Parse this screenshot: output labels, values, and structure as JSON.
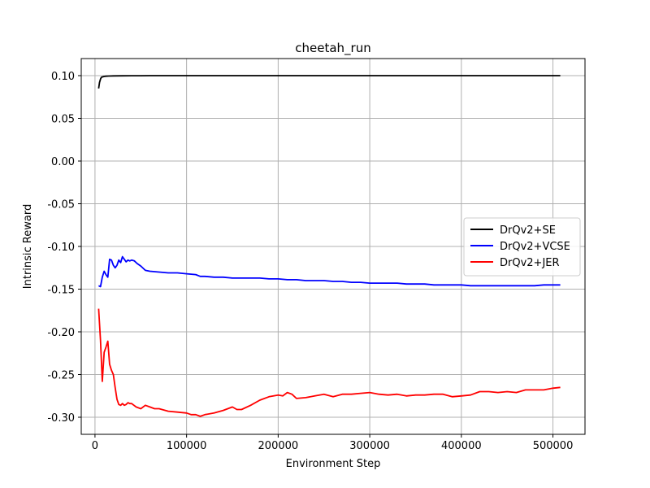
{
  "chart_data": {
    "type": "line",
    "title": "cheetah_run",
    "xlabel": "Environment Step",
    "ylabel": "Intrinsic  Reward",
    "xlim": [
      -15000,
      535000
    ],
    "ylim": [
      -0.32,
      0.12
    ],
    "x_ticks": [
      0,
      100000,
      200000,
      300000,
      400000,
      500000
    ],
    "y_ticks": [
      0.1,
      0.05,
      0.0,
      -0.05,
      -0.1,
      -0.15,
      -0.2,
      -0.25,
      -0.3
    ],
    "grid": true,
    "legend_position": "center-right",
    "series": [
      {
        "name": "DrQv2+SE",
        "color": "#000000",
        "x": [
          4000,
          5000,
          6000,
          7000,
          8000,
          10000,
          12000,
          15000,
          20000,
          30000,
          40000,
          50000,
          60000,
          100000,
          200000,
          300000,
          400000,
          508000
        ],
        "y": [
          0.085,
          0.092,
          0.096,
          0.098,
          0.0985,
          0.099,
          0.0993,
          0.0995,
          0.0997,
          0.0998,
          0.0999,
          0.0999,
          0.1,
          0.1,
          0.1,
          0.1,
          0.1,
          0.1
        ]
      },
      {
        "name": "DrQv2+VCSE",
        "color": "#0000ff",
        "x": [
          4000,
          6000,
          8000,
          10000,
          12000,
          14000,
          16000,
          18000,
          20000,
          22000,
          24000,
          26000,
          28000,
          30000,
          32000,
          34000,
          36000,
          38000,
          40000,
          43000,
          46000,
          50000,
          55000,
          60000,
          70000,
          80000,
          90000,
          100000,
          110000,
          115000,
          120000,
          130000,
          140000,
          150000,
          160000,
          170000,
          180000,
          190000,
          200000,
          210000,
          220000,
          230000,
          240000,
          250000,
          260000,
          270000,
          280000,
          290000,
          300000,
          310000,
          320000,
          330000,
          340000,
          350000,
          360000,
          370000,
          380000,
          390000,
          400000,
          410000,
          420000,
          430000,
          440000,
          450000,
          460000,
          470000,
          480000,
          490000,
          500000,
          508000
        ],
        "y": [
          -0.146,
          -0.147,
          -0.136,
          -0.129,
          -0.133,
          -0.136,
          -0.115,
          -0.116,
          -0.122,
          -0.125,
          -0.122,
          -0.116,
          -0.119,
          -0.112,
          -0.115,
          -0.118,
          -0.116,
          -0.117,
          -0.116,
          -0.117,
          -0.12,
          -0.123,
          -0.128,
          -0.129,
          -0.13,
          -0.131,
          -0.131,
          -0.132,
          -0.133,
          -0.135,
          -0.135,
          -0.136,
          -0.136,
          -0.137,
          -0.137,
          -0.137,
          -0.137,
          -0.138,
          -0.138,
          -0.139,
          -0.139,
          -0.14,
          -0.14,
          -0.14,
          -0.141,
          -0.141,
          -0.142,
          -0.142,
          -0.143,
          -0.143,
          -0.143,
          -0.143,
          -0.144,
          -0.144,
          -0.144,
          -0.145,
          -0.145,
          -0.145,
          -0.145,
          -0.146,
          -0.146,
          -0.146,
          -0.146,
          -0.146,
          -0.146,
          -0.146,
          -0.146,
          -0.145,
          -0.145,
          -0.145
        ]
      },
      {
        "name": "DrQv2+JER",
        "color": "#ff0000",
        "x": [
          4000,
          6000,
          8000,
          10000,
          12000,
          14000,
          16000,
          18000,
          20000,
          22000,
          24000,
          26000,
          28000,
          30000,
          32000,
          34000,
          36000,
          38000,
          40000,
          45000,
          50000,
          55000,
          60000,
          65000,
          70000,
          80000,
          90000,
          100000,
          105000,
          110000,
          115000,
          120000,
          130000,
          140000,
          150000,
          155000,
          160000,
          170000,
          180000,
          190000,
          200000,
          205000,
          210000,
          215000,
          220000,
          230000,
          240000,
          250000,
          260000,
          270000,
          280000,
          290000,
          300000,
          310000,
          320000,
          330000,
          340000,
          350000,
          360000,
          370000,
          380000,
          390000,
          400000,
          410000,
          420000,
          430000,
          440000,
          450000,
          460000,
          470000,
          480000,
          490000,
          500000,
          508000
        ],
        "y": [
          -0.173,
          -0.21,
          -0.258,
          -0.224,
          -0.218,
          -0.211,
          -0.238,
          -0.245,
          -0.25,
          -0.265,
          -0.279,
          -0.285,
          -0.286,
          -0.284,
          -0.286,
          -0.285,
          -0.283,
          -0.284,
          -0.284,
          -0.288,
          -0.29,
          -0.286,
          -0.288,
          -0.29,
          -0.29,
          -0.293,
          -0.294,
          -0.295,
          -0.297,
          -0.297,
          -0.299,
          -0.297,
          -0.295,
          -0.292,
          -0.288,
          -0.291,
          -0.291,
          -0.286,
          -0.28,
          -0.276,
          -0.274,
          -0.275,
          -0.271,
          -0.273,
          -0.278,
          -0.277,
          -0.275,
          -0.273,
          -0.276,
          -0.273,
          -0.273,
          -0.272,
          -0.271,
          -0.273,
          -0.274,
          -0.273,
          -0.275,
          -0.274,
          -0.274,
          -0.273,
          -0.273,
          -0.276,
          -0.275,
          -0.274,
          -0.27,
          -0.27,
          -0.271,
          -0.27,
          -0.271,
          -0.268,
          -0.268,
          -0.268,
          -0.266,
          -0.265
        ]
      }
    ]
  }
}
